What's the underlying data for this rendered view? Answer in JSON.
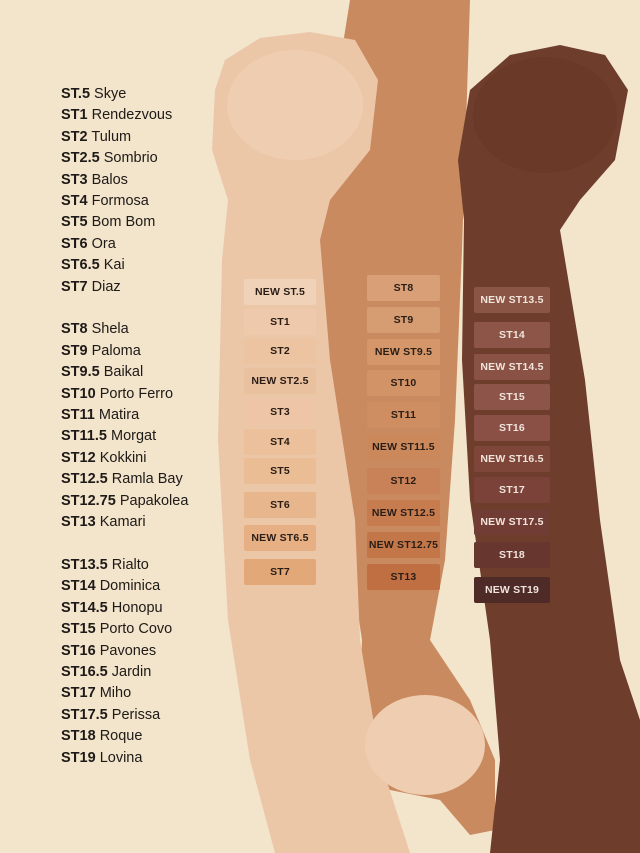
{
  "shade_list": [
    [
      {
        "code": "ST.5",
        "name": "Skye"
      },
      {
        "code": "ST1",
        "name": "Rendezvous"
      },
      {
        "code": "ST2",
        "name": "Tulum"
      },
      {
        "code": "ST2.5",
        "name": "Sombrio"
      },
      {
        "code": "ST3",
        "name": "Balos"
      },
      {
        "code": "ST4",
        "name": "Formosa"
      },
      {
        "code": "ST5",
        "name": "Bom Bom"
      },
      {
        "code": "ST6",
        "name": "Ora"
      },
      {
        "code": "ST6.5",
        "name": "Kai"
      },
      {
        "code": "ST7",
        "name": "Diaz"
      }
    ],
    [
      {
        "code": "ST8",
        "name": "Shela"
      },
      {
        "code": "ST9",
        "name": "Paloma"
      },
      {
        "code": "ST9.5",
        "name": "Baikal"
      },
      {
        "code": "ST10",
        "name": "Porto Ferro"
      },
      {
        "code": "ST11",
        "name": "Matira"
      },
      {
        "code": "ST11.5",
        "name": "Morgat"
      },
      {
        "code": "ST12",
        "name": "Kokkini"
      },
      {
        "code": "ST12.5",
        "name": "Ramla Bay"
      },
      {
        "code": "ST12.75",
        "name": "Papakolea"
      },
      {
        "code": "ST13",
        "name": "Kamari"
      }
    ],
    [
      {
        "code": "ST13.5",
        "name": "Rialto"
      },
      {
        "code": "ST14",
        "name": "Dominica"
      },
      {
        "code": "ST14.5",
        "name": "Honopu"
      },
      {
        "code": "ST15",
        "name": "Porto Covo"
      },
      {
        "code": "ST16",
        "name": "Pavones"
      },
      {
        "code": "ST16.5",
        "name": "Jardin"
      },
      {
        "code": "ST17",
        "name": "Miho"
      },
      {
        "code": "ST17.5",
        "name": "Perissa"
      },
      {
        "code": "ST18",
        "name": "Roque"
      },
      {
        "code": "ST19",
        "name": "Lovina"
      }
    ]
  ],
  "arm_swatches": [
    {
      "skin": "#ebc7a8",
      "items": [
        {
          "label": "NEW ST.5",
          "color": "#f0d2b9"
        },
        {
          "label": "ST1",
          "color": "#eec9ab"
        },
        {
          "label": "ST2",
          "color": "#ecc4a2"
        },
        {
          "label": "NEW ST2.5",
          "color": "#eac19f"
        },
        {
          "label": "ST3",
          "color": "#eec6a7"
        },
        {
          "label": "ST4",
          "color": "#ebc09b"
        },
        {
          "label": "ST5",
          "color": "#eabd95"
        },
        {
          "label": "ST6",
          "color": "#e7b68c"
        },
        {
          "label": "NEW ST6.5",
          "color": "#e6b084"
        },
        {
          "label": "ST7",
          "color": "#e2a878"
        }
      ]
    },
    {
      "skin": "#c98a60",
      "items": [
        {
          "label": "ST8",
          "color": "#d9a077"
        },
        {
          "label": "ST9",
          "color": "#d69c72"
        },
        {
          "label": "NEW ST9.5",
          "color": "#d5976a"
        },
        {
          "label": "ST10",
          "color": "#d29467"
        },
        {
          "label": "ST11",
          "color": "#cf8e62"
        },
        {
          "label": "NEW ST11.5",
          "color": "#cb885b"
        },
        {
          "label": "ST12",
          "color": "#c98257"
        },
        {
          "label": "NEW ST12.5",
          "color": "#c67c4f"
        },
        {
          "label": "NEW ST12.75",
          "color": "#c37749"
        },
        {
          "label": "ST13",
          "color": "#c06f43"
        }
      ]
    },
    {
      "skin": "#6e3d2b",
      "items": [
        {
          "label": "NEW ST13.5",
          "color": "#8a5544"
        },
        {
          "label": "ST14",
          "color": "#8c5547"
        },
        {
          "label": "NEW ST14.5",
          "color": "#8a5244"
        },
        {
          "label": "ST15",
          "color": "#8d5449"
        },
        {
          "label": "ST16",
          "color": "#8a5046"
        },
        {
          "label": "NEW ST16.5",
          "color": "#7d4639"
        },
        {
          "label": "ST17",
          "color": "#7a4238"
        },
        {
          "label": "NEW ST17.5",
          "color": "#713c33"
        },
        {
          "label": "ST18",
          "color": "#66362f"
        },
        {
          "label": "NEW ST19",
          "color": "#4e2b27"
        }
      ]
    }
  ],
  "colors": {
    "background": "#f3e4cc",
    "text": "#1e1a17"
  }
}
